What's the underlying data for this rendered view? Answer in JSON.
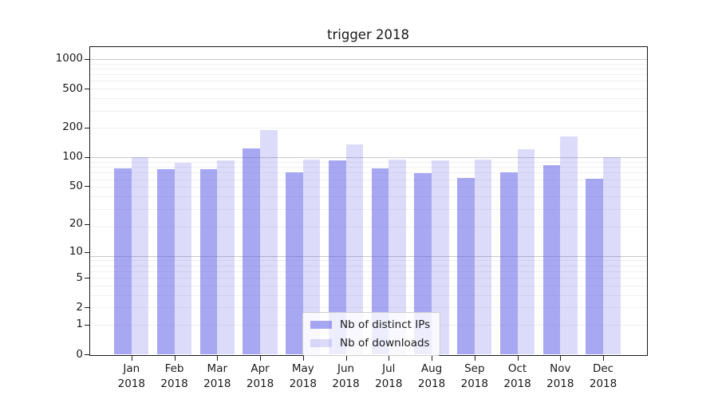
{
  "figure": {
    "title": "trigger 2018"
  },
  "chart_data": {
    "type": "bar",
    "title": "trigger 2018",
    "categories": [
      "Jan 2018",
      "Feb 2018",
      "Mar 2018",
      "Apr 2018",
      "May 2018",
      "Jun 2018",
      "Jul 2018",
      "Aug 2018",
      "Sep 2018",
      "Oct 2018",
      "Nov 2018",
      "Dec 2018"
    ],
    "series": [
      {
        "name": "Nb of distinct IPs",
        "color": "rgba(80, 80, 230, 0.5)",
        "values": [
          76,
          75,
          75,
          123,
          70,
          93,
          76,
          68,
          61,
          70,
          83,
          60
        ]
      },
      {
        "name": "Nb of downloads",
        "color": "rgba(80, 80, 230, 0.2)",
        "values": [
          100,
          88,
          93,
          188,
          94,
          135,
          94,
          92,
          95,
          121,
          163,
          100
        ]
      }
    ],
    "yscale": "log1p",
    "yticks": [
      0,
      1,
      2,
      5,
      10,
      20,
      50,
      100,
      200,
      500,
      1000
    ],
    "ylim": [
      0,
      1275
    ],
    "xlabel": "",
    "ylabel": "",
    "grid": "on",
    "legend_position": "lower center",
    "background": "#ffffff",
    "gridline_minor_color": "#f0f0f0",
    "gridline_major_color": "#c9c9c9"
  }
}
